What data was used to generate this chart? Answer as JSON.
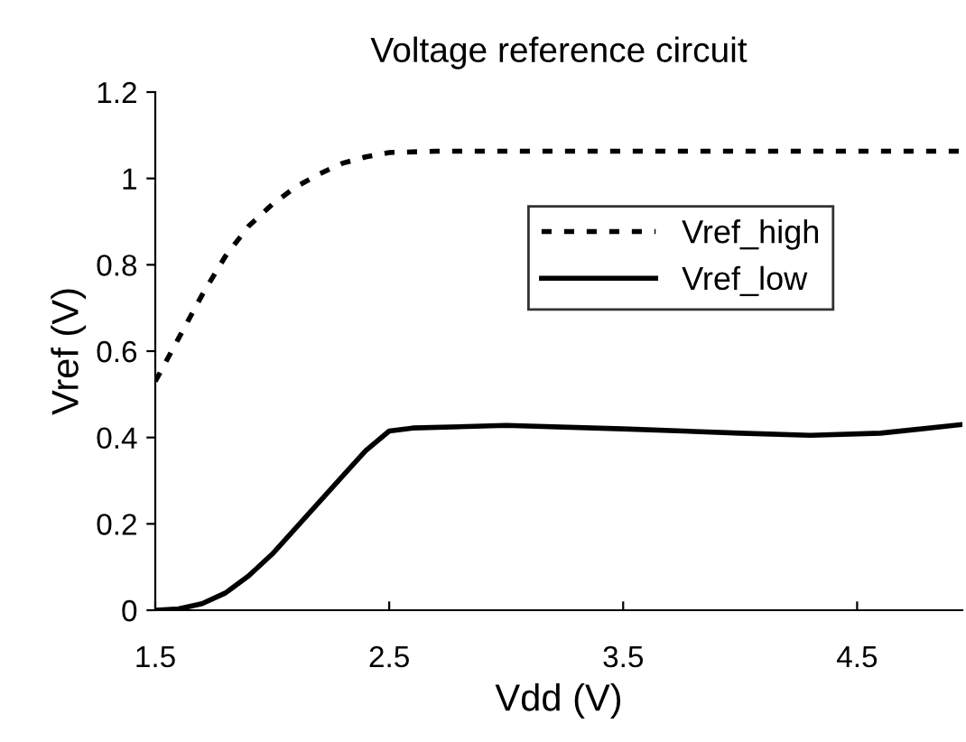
{
  "chart_data": {
    "type": "line",
    "title": "Voltage reference circuit",
    "xlabel": "Vdd (V)",
    "ylabel": "Vref (V)",
    "xlim": [
      1.5,
      4.95
    ],
    "xticks": [
      1.5,
      2.5,
      3.5,
      4.5
    ],
    "ylim": [
      0,
      1.2
    ],
    "yticks": [
      0,
      0.2,
      0.4,
      0.6,
      0.8,
      1,
      1.2
    ],
    "grid": false,
    "legend": "right",
    "series": [
      {
        "name": "Vref_high",
        "color": "#000000",
        "line_style": "dotted",
        "x": [
          1.5,
          1.6,
          1.7,
          1.8,
          1.9,
          2.0,
          2.1,
          2.2,
          2.3,
          2.4,
          2.5,
          2.7,
          3.0,
          4.0,
          4.95
        ],
        "values": [
          0.53,
          0.63,
          0.73,
          0.82,
          0.89,
          0.94,
          0.98,
          1.01,
          1.035,
          1.05,
          1.06,
          1.063,
          1.063,
          1.063,
          1.063
        ]
      },
      {
        "name": "Vref_low",
        "color": "#000000",
        "line_style": "solid",
        "x": [
          1.5,
          1.6,
          1.7,
          1.8,
          1.9,
          2.0,
          2.1,
          2.2,
          2.3,
          2.4,
          2.5,
          2.6,
          3.0,
          3.5,
          4.0,
          4.3,
          4.6,
          4.95
        ],
        "values": [
          0,
          0.003,
          0.015,
          0.04,
          0.08,
          0.13,
          0.19,
          0.25,
          0.31,
          0.37,
          0.415,
          0.422,
          0.428,
          0.42,
          0.41,
          0.405,
          0.41,
          0.43
        ]
      }
    ]
  }
}
